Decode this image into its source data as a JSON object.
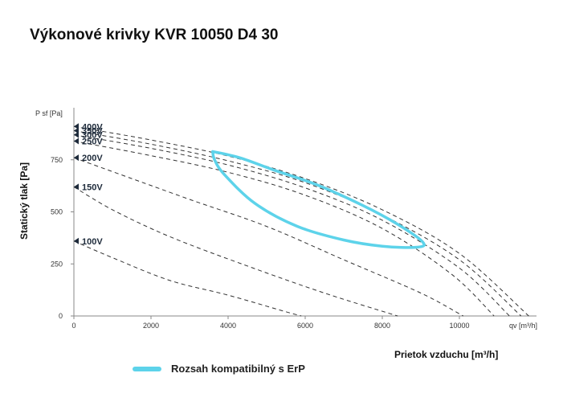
{
  "chart_data": {
    "type": "line",
    "title": "Výkonové krivky KVR 10050 D4 30",
    "ylabel": "Statický tlak [Pa]",
    "xlabel": "Prietok vzduchu [m³/h]",
    "x_unit_label": "qv [m³/h]",
    "y_unit_label": "P sf [Pa]",
    "xlim": [
      0,
      12000
    ],
    "ylim": [
      0,
      1000
    ],
    "x_ticks": [
      0,
      2000,
      4000,
      6000,
      8000,
      10000
    ],
    "y_ticks": [
      0,
      250,
      500,
      750
    ],
    "grid": false,
    "series": [
      {
        "name": "100V",
        "points": [
          [
            0,
            360
          ],
          [
            1000,
            280
          ],
          [
            2500,
            170
          ],
          [
            4000,
            100
          ],
          [
            5500,
            20
          ],
          [
            5900,
            0
          ]
        ]
      },
      {
        "name": "150V",
        "points": [
          [
            0,
            620
          ],
          [
            1000,
            510
          ],
          [
            2500,
            380
          ],
          [
            4500,
            240
          ],
          [
            6500,
            110
          ],
          [
            8400,
            0
          ]
        ]
      },
      {
        "name": "200V",
        "points": [
          [
            0,
            760
          ],
          [
            1500,
            660
          ],
          [
            3000,
            560
          ],
          [
            5000,
            430
          ],
          [
            7000,
            270
          ],
          [
            9000,
            110
          ],
          [
            10100,
            0
          ]
        ]
      },
      {
        "name": "250V",
        "points": [
          [
            0,
            840
          ],
          [
            2000,
            770
          ],
          [
            4000,
            690
          ],
          [
            6000,
            580
          ],
          [
            8000,
            420
          ],
          [
            9800,
            200
          ],
          [
            10900,
            0
          ]
        ]
      },
      {
        "name": "300V",
        "points": [
          [
            0,
            870
          ],
          [
            2000,
            805
          ],
          [
            4000,
            725
          ],
          [
            6000,
            615
          ],
          [
            8000,
            460
          ],
          [
            10000,
            230
          ],
          [
            11300,
            0
          ]
        ]
      },
      {
        "name": "350V",
        "points": [
          [
            0,
            890
          ],
          [
            2000,
            825
          ],
          [
            4000,
            745
          ],
          [
            6000,
            640
          ],
          [
            8000,
            485
          ],
          [
            10000,
            270
          ],
          [
            11600,
            0
          ]
        ]
      },
      {
        "name": "400V",
        "points": [
          [
            0,
            910
          ],
          [
            2000,
            845
          ],
          [
            4000,
            768
          ],
          [
            6000,
            660
          ],
          [
            8000,
            510
          ],
          [
            10000,
            300
          ],
          [
            11800,
            0
          ]
        ]
      }
    ],
    "erp_region": {
      "name": "Rozsah kompatibilný s ErP",
      "color": "#5dd3ea",
      "points": [
        [
          3600,
          790
        ],
        [
          4300,
          760
        ],
        [
          5200,
          700
        ],
        [
          6300,
          630
        ],
        [
          7500,
          530
        ],
        [
          8400,
          440
        ],
        [
          9050,
          355
        ],
        [
          8900,
          330
        ],
        [
          8000,
          335
        ],
        [
          7000,
          365
        ],
        [
          5800,
          430
        ],
        [
          4700,
          540
        ],
        [
          3900,
          680
        ],
        [
          3650,
          750
        ],
        [
          3600,
          790
        ]
      ]
    }
  },
  "legend": {
    "label": "Rozsah kompatibilný s ErP"
  },
  "colors": {
    "curves": "#333333",
    "erp": "#5dd3ea",
    "marker": "#1d2a3a"
  }
}
